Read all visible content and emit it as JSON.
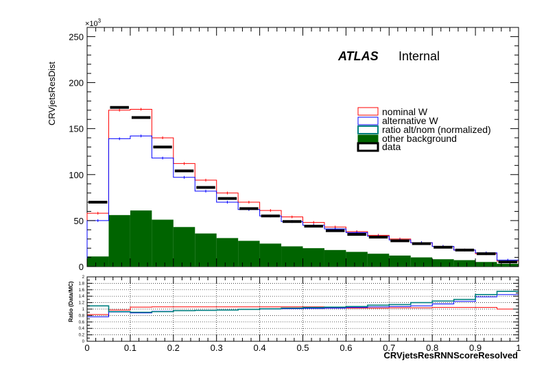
{
  "chart_data": [
    {
      "type": "histogram",
      "ylabel": "CRVjetsResDist",
      "y_exponent_label": "×10",
      "y_exponent_power": "3",
      "xlim": [
        0,
        1
      ],
      "ylim": [
        0,
        260
      ],
      "yticks": [
        "0",
        "50",
        "100",
        "150",
        "200",
        "250"
      ],
      "bin_edges": [
        0,
        0.05,
        0.1,
        0.15,
        0.2,
        0.25,
        0.3,
        0.35,
        0.4,
        0.45,
        0.5,
        0.55,
        0.6,
        0.65,
        0.7,
        0.75,
        0.8,
        0.85,
        0.9,
        0.95,
        1.0
      ],
      "atlas_label": "ATLAS",
      "atlas_sublabel": "Internal",
      "legend_position": "top-right",
      "series": [
        {
          "name": "nominal W",
          "kind": "line",
          "color": "#ff0000",
          "values": [
            58,
            170,
            171,
            140,
            112,
            94,
            80,
            70,
            61,
            54,
            48,
            43,
            38,
            34,
            30,
            26,
            22,
            18,
            14,
            6
          ]
        },
        {
          "name": "alternative W",
          "kind": "line",
          "color": "#0000ff",
          "values": [
            50,
            139,
            142,
            118,
            97,
            82,
            70,
            62,
            55,
            49,
            45,
            41,
            37,
            33,
            29,
            26,
            22,
            18,
            15,
            7
          ]
        },
        {
          "name": "ratio alt/nom (normalized)",
          "kind": "legend-only",
          "color": "#008080"
        },
        {
          "name": "other background",
          "kind": "filled",
          "color": "#006400",
          "values": [
            11,
            56,
            61,
            51,
            43,
            36,
            31,
            28,
            25,
            22,
            20,
            18,
            16,
            14,
            12,
            10,
            8,
            7,
            5,
            3
          ]
        },
        {
          "name": "data",
          "kind": "marker",
          "color": "#000000",
          "values": [
            70,
            173,
            162,
            130,
            104,
            86,
            74,
            63,
            55,
            49,
            44,
            39,
            35,
            32,
            28,
            25,
            21,
            18,
            14,
            5
          ]
        }
      ]
    },
    {
      "type": "ratio",
      "ylabel": "Ratio (Data/MC)",
      "xlabel": "CRVjetsResRNNScoreResolved",
      "xlim": [
        0,
        1
      ],
      "ylim": [
        0,
        2
      ],
      "xticks": [
        "0",
        "0.1",
        "0.2",
        "0.3",
        "0.4",
        "0.5",
        "0.6",
        "0.7",
        "0.8",
        "0.9",
        "1"
      ],
      "yticks": [
        "0",
        "0.2",
        "0.4",
        "0.6",
        "0.8",
        "1",
        "1.2",
        "1.4",
        "1.6",
        "1.8",
        "2"
      ],
      "grid": true,
      "series": [
        {
          "name": "",
          "kind": "step",
          "color": "#ff0000",
          "values": [
            0.83,
            0.97,
            1.06,
            1.07,
            1.07,
            1.07,
            1.07,
            1.07,
            1.07,
            1.07,
            1.07,
            1.04,
            1.03,
            1.03,
            1.04,
            1.04,
            1.05,
            1.05,
            1.05,
            1.0
          ]
        },
        {
          "name": "",
          "kind": "step",
          "color": "#0000ff",
          "values": [
            0.76,
            0.91,
            0.88,
            0.93,
            0.95,
            0.96,
            0.97,
            0.99,
            1.0,
            1.01,
            1.02,
            1.03,
            1.05,
            1.07,
            1.08,
            1.1,
            1.16,
            1.24,
            1.38,
            1.45
          ]
        },
        {
          "name": "",
          "kind": "step",
          "color": "#008080",
          "values": [
            1.1,
            0.92,
            0.9,
            0.92,
            0.95,
            0.96,
            0.97,
            0.99,
            1.01,
            1.03,
            1.05,
            1.06,
            1.08,
            1.12,
            1.14,
            1.2,
            1.25,
            1.3,
            1.45,
            1.55
          ]
        }
      ]
    }
  ]
}
